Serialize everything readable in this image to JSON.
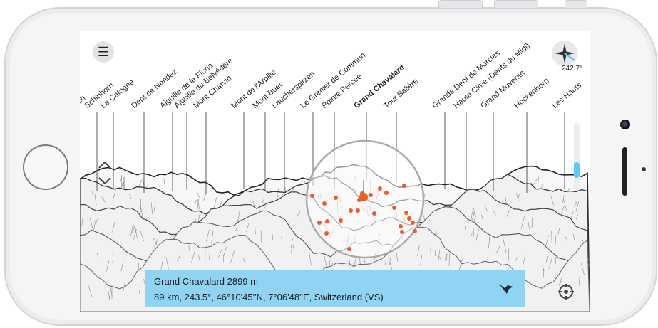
{
  "app": {
    "peaks": [
      {
        "name": "Schinhorn",
        "bold": false
      },
      {
        "name": "Le Catogne",
        "bold": false
      },
      {
        "name": "Dent de Nendaz",
        "bold": false
      },
      {
        "name": "Aiguille de la Floria",
        "bold": false
      },
      {
        "name": "Aiguille du Belvédère",
        "bold": false
      },
      {
        "name": "Mont Charvin",
        "bold": false
      },
      {
        "name": "Mont de l'Arpille",
        "bold": false
      },
      {
        "name": "Mont Buet",
        "bold": false
      },
      {
        "name": "Laucherspitzen",
        "bold": false
      },
      {
        "name": "Le Grenier de Commun",
        "bold": false
      },
      {
        "name": "Pointe Percée",
        "bold": false
      },
      {
        "name": "Grand Chavalard",
        "bold": true
      },
      {
        "name": "Tour Salière",
        "bold": false
      },
      {
        "name": "Grande Dent de Morcles",
        "bold": false
      },
      {
        "name": "Haute Cime (Dents du Midi)",
        "bold": false
      },
      {
        "name": "Grand Muveran",
        "bold": false
      },
      {
        "name": "Hockenhorn",
        "bold": false
      },
      {
        "name": "Les Hauts",
        "bold": false
      }
    ],
    "cut_label": "urch",
    "compass_heading": "242.7°",
    "selected": {
      "title": "Grand Chavalard 2899 m",
      "detail": "89 km, 243.5°, 46°10'45''N, 7°06'48''E, Switzerland (VS)"
    },
    "icons": {
      "menu": "hamburger-menu-icon",
      "compass": "compass-icon",
      "zoom": "zoom-arrows-icon",
      "bird": "bird-icon",
      "locate": "locate-icon"
    },
    "colors": {
      "accent": "#5ac8fa",
      "info_bar": "#8fd4f3",
      "marker": "#f05a24"
    }
  }
}
